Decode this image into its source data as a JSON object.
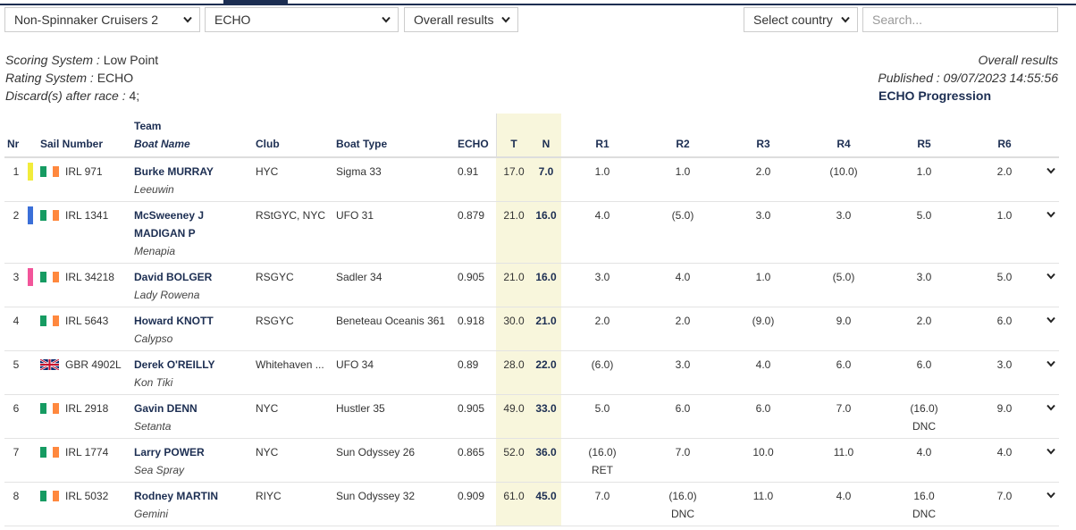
{
  "filters": [
    "Non-Spinnaker Cruisers 2",
    "ECHO",
    "Overall results",
    "Select country"
  ],
  "search": "Search...",
  "info": [
    {
      "label": "Scoring System :",
      "value": "Low Point"
    },
    {
      "label": "Rating System :",
      "value": "ECHO"
    },
    {
      "label": "Discard(s) after race :",
      "value": "4;"
    }
  ],
  "summary": {
    "title": "Overall results",
    "published": "Published : 09/07/2023 14:55:56",
    "link": "ECHO Progression"
  },
  "header": {
    "nr": "Nr",
    "sail": "Sail Number",
    "team": [
      "Team",
      "Boat Name"
    ],
    "club": "Club",
    "type": "Boat Type",
    "rating": "ECHO",
    "t": "T",
    "n": "N",
    "races": [
      "R1",
      "R2",
      "R3",
      "R4",
      "R5",
      "R6"
    ]
  },
  "rows": [
    {
      "nr": "1",
      "color": "#f2ec3b",
      "flag": "ie",
      "sail": "IRL 971",
      "team": [
        "Burke MURRAY"
      ],
      "boat": "Leeuwin",
      "club": "HYC",
      "type": "Sigma 33",
      "rating": "0.91",
      "t": "17.0",
      "n": "7.0",
      "races": [
        {
          "score": "1.0"
        },
        {
          "score": "1.0"
        },
        {
          "score": "2.0"
        },
        {
          "score": "(10.0)"
        },
        {
          "score": "1.0"
        },
        {
          "score": "2.0"
        }
      ]
    },
    {
      "nr": "2",
      "color": "#3b6fd8",
      "flag": "ie",
      "sail": "IRL 1341",
      "team": [
        "McSweeney J",
        "MADIGAN P"
      ],
      "boat": "Menapia",
      "club": "RStGYC, NYC",
      "type": "UFO 31",
      "rating": "0.879",
      "t": "21.0",
      "n": "16.0",
      "races": [
        {
          "score": "4.0"
        },
        {
          "score": "(5.0)"
        },
        {
          "score": "3.0"
        },
        {
          "score": "3.0"
        },
        {
          "score": "5.0"
        },
        {
          "score": "1.0"
        }
      ]
    },
    {
      "nr": "3",
      "color": "#f2559a",
      "flag": "ie",
      "sail": "IRL 34218",
      "team": [
        "David BOLGER"
      ],
      "boat": "Lady Rowena",
      "club": "RSGYC",
      "type": "Sadler 34",
      "rating": "0.905",
      "t": "21.0",
      "n": "16.0",
      "races": [
        {
          "score": "3.0"
        },
        {
          "score": "4.0"
        },
        {
          "score": "1.0"
        },
        {
          "score": "(5.0)"
        },
        {
          "score": "3.0"
        },
        {
          "score": "5.0"
        }
      ]
    },
    {
      "nr": "4",
      "flag": "ie",
      "sail": "IRL 5643",
      "team": [
        "Howard KNOTT"
      ],
      "boat": "Calypso",
      "club": "RSGYC",
      "type": "Beneteau Oceanis 361",
      "rating": "0.918",
      "t": "30.0",
      "n": "21.0",
      "races": [
        {
          "score": "2.0"
        },
        {
          "score": "2.0"
        },
        {
          "score": "(9.0)"
        },
        {
          "score": "9.0"
        },
        {
          "score": "2.0"
        },
        {
          "score": "6.0"
        }
      ]
    },
    {
      "nr": "5",
      "flag": "gb",
      "sail": "GBR 4902L",
      "team": [
        "Derek O'REILLY"
      ],
      "boat": "Kon Tiki",
      "club": "Whitehaven ...",
      "type": "UFO 34",
      "rating": "0.89",
      "t": "28.0",
      "n": "22.0",
      "races": [
        {
          "score": "(6.0)"
        },
        {
          "score": "3.0"
        },
        {
          "score": "4.0"
        },
        {
          "score": "6.0"
        },
        {
          "score": "6.0"
        },
        {
          "score": "3.0"
        }
      ]
    },
    {
      "nr": "6",
      "flag": "ie",
      "sail": "IRL 2918",
      "team": [
        "Gavin DENN"
      ],
      "boat": "Setanta",
      "club": "NYC",
      "type": "Hustler 35",
      "rating": "0.905",
      "t": "49.0",
      "n": "33.0",
      "races": [
        {
          "score": "5.0"
        },
        {
          "score": "6.0"
        },
        {
          "score": "6.0"
        },
        {
          "score": "7.0"
        },
        {
          "score": "(16.0)",
          "code": "DNC"
        },
        {
          "score": "9.0"
        }
      ]
    },
    {
      "nr": "7",
      "flag": "ie",
      "sail": "IRL 1774",
      "team": [
        "Larry POWER"
      ],
      "boat": "Sea Spray",
      "club": "NYC",
      "type": "Sun Odyssey 26",
      "rating": "0.865",
      "t": "52.0",
      "n": "36.0",
      "races": [
        {
          "score": "(16.0)",
          "code": "RET"
        },
        {
          "score": "7.0"
        },
        {
          "score": "10.0"
        },
        {
          "score": "11.0"
        },
        {
          "score": "4.0"
        },
        {
          "score": "4.0"
        }
      ]
    },
    {
      "nr": "8",
      "flag": "ie",
      "sail": "IRL 5032",
      "team": [
        "Rodney MARTIN"
      ],
      "boat": "Gemini",
      "club": "RIYC",
      "type": "Sun Odyssey 32",
      "rating": "0.909",
      "t": "61.0",
      "n": "45.0",
      "races": [
        {
          "score": "7.0"
        },
        {
          "score": "(16.0)",
          "code": "DNC"
        },
        {
          "score": "11.0"
        },
        {
          "score": "4.0"
        },
        {
          "score": "16.0",
          "code": "DNC"
        },
        {
          "score": "7.0"
        }
      ]
    }
  ]
}
